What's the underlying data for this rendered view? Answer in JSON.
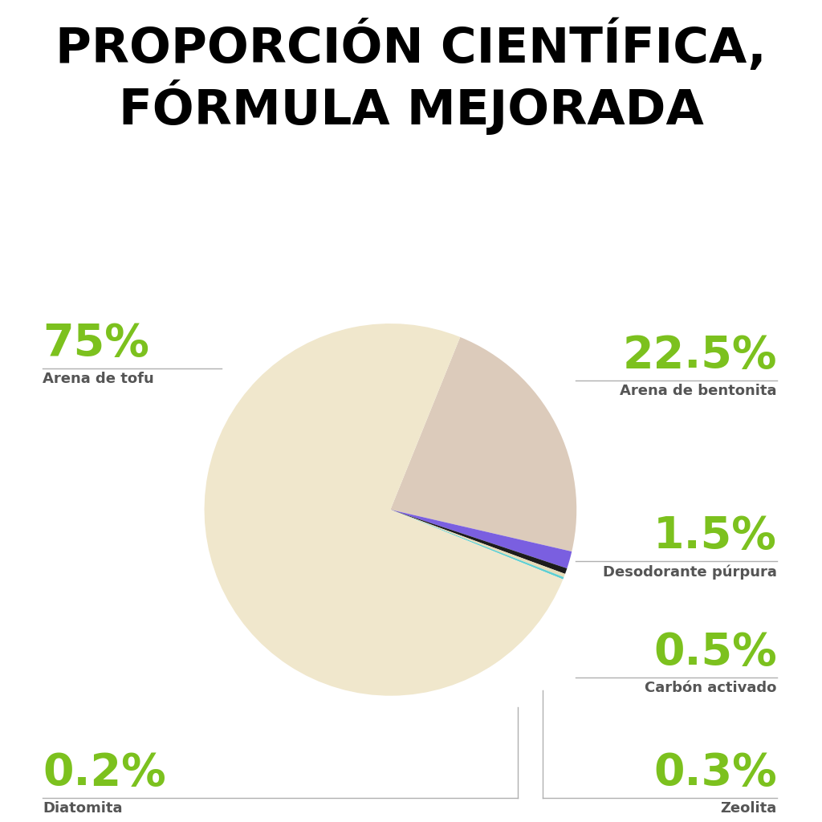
{
  "chart_data": {
    "type": "pie",
    "title": "PROPORCIÓN CIENTÍFICA, FÓRMULA MEJORADA",
    "categories": [
      "Arena de bentonita",
      "Desodorante púrpura",
      "Carbón activado",
      "Zeolita",
      "Diatomita",
      "Arena de tofu"
    ],
    "values": [
      22.5,
      1.5,
      0.5,
      0.3,
      0.2,
      75
    ],
    "value_labels": [
      "22.5%",
      "1.5%",
      "0.5%",
      "0.3%",
      "0.2%",
      "75%"
    ],
    "colors": [
      "#dccbbb",
      "#7a5fe0",
      "#1c1c1c",
      "#e6dcb8",
      "#5ecfd2",
      "#f0e7cc"
    ],
    "data_labels": true
  }
}
